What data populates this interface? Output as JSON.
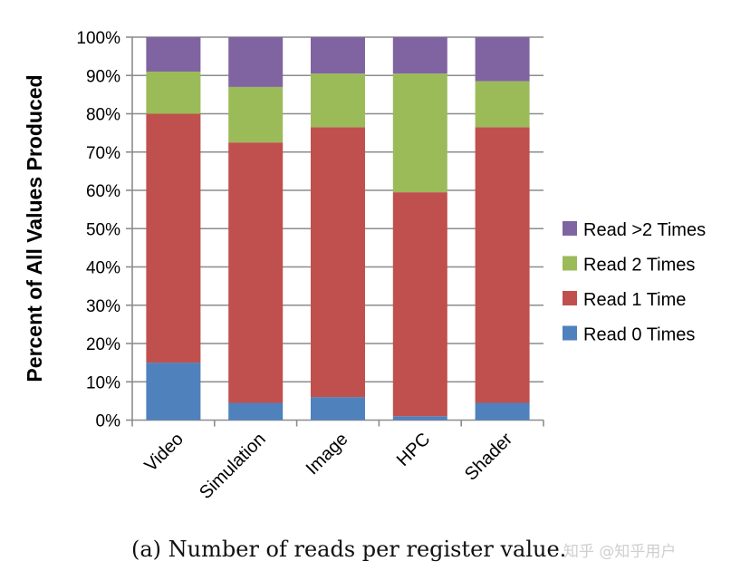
{
  "chart_data": {
    "type": "bar",
    "stacked": true,
    "title": "",
    "xlabel": "",
    "ylabel": "Percent of All Values Produced",
    "ylim": [
      0,
      100
    ],
    "yticks": [
      "0%",
      "10%",
      "20%",
      "30%",
      "40%",
      "50%",
      "60%",
      "70%",
      "80%",
      "90%",
      "100%"
    ],
    "grid": true,
    "legend_position": "right",
    "categories": [
      "Video",
      "Simulation",
      "Image",
      "HPC",
      "Shader"
    ],
    "series": [
      {
        "name": "Read 0 Times",
        "color": "#4f81bd",
        "values": [
          15,
          4.5,
          6,
          1,
          4.5
        ]
      },
      {
        "name": "Read 1 Time",
        "color": "#c0504d",
        "values": [
          65,
          68,
          70.5,
          58.5,
          72
        ]
      },
      {
        "name": "Read 2 Times",
        "color": "#9bbb59",
        "values": [
          11,
          14.5,
          14,
          31,
          12
        ]
      },
      {
        "name": "Read >2 Times",
        "color": "#8064a2",
        "values": [
          9,
          13,
          9.5,
          9.5,
          11.5
        ]
      }
    ]
  },
  "caption": "(a) Number of reads per register value.",
  "watermark": "知乎 @知乎用户"
}
